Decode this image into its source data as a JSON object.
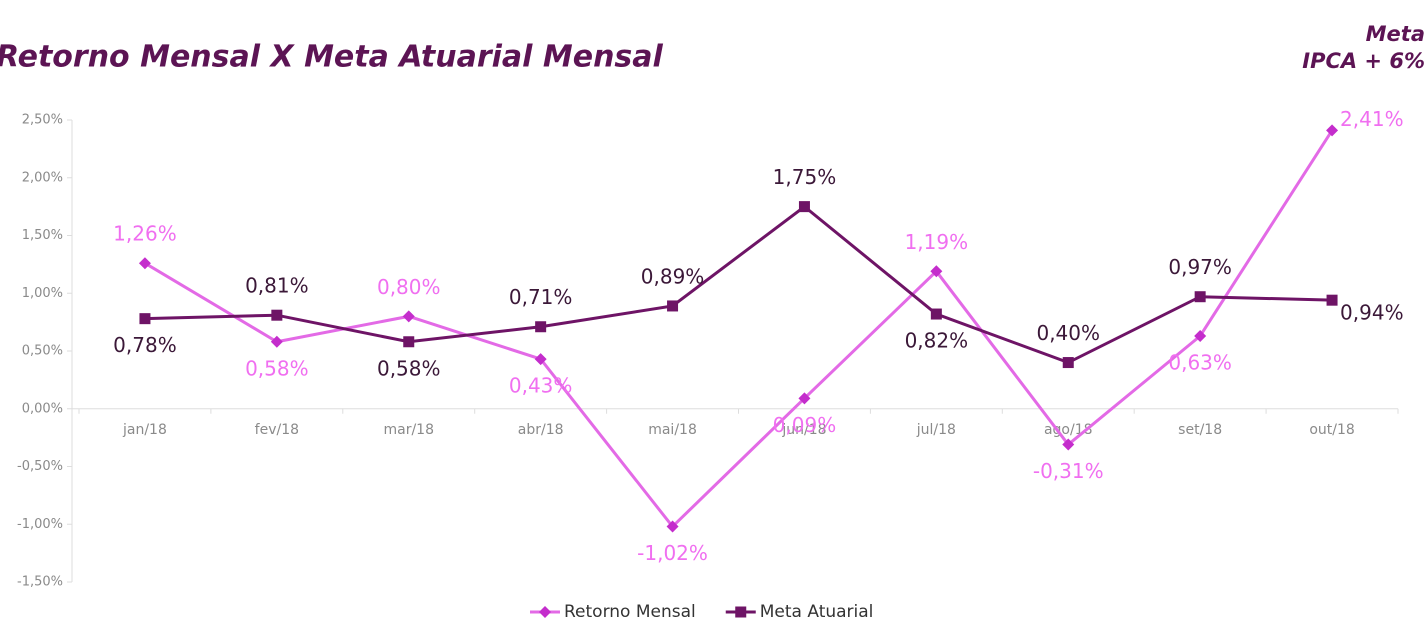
{
  "chart_data": {
    "type": "line",
    "title": "Retorno Mensal X Meta Atuarial Mensal",
    "annotations": [
      "Meta",
      "IPCA + 6%"
    ],
    "categories": [
      "jan/18",
      "fev/18",
      "mar/18",
      "abr/18",
      "mai/18",
      "jun/18",
      "jul/18",
      "ago/18",
      "set/18",
      "out/18"
    ],
    "series": [
      {
        "name": "Retorno Mensal",
        "color": "#e36ae6",
        "marker": "diamond",
        "values": [
          1.26,
          0.58,
          0.8,
          0.43,
          -1.02,
          0.09,
          1.19,
          -0.31,
          0.63,
          2.41
        ],
        "value_labels": [
          "1,26%",
          "0,58%",
          "0,80%",
          "0,43%",
          "-1,02%",
          "0,09%",
          "1,19%",
          "-0,31%",
          "0,63%",
          "2,41%"
        ]
      },
      {
        "name": "Meta Atuarial",
        "color": "#6e1466",
        "marker": "square",
        "values": [
          0.78,
          0.81,
          0.58,
          0.71,
          0.89,
          1.75,
          0.82,
          0.4,
          0.97,
          0.94
        ],
        "value_labels": [
          "0,78%",
          "0,81%",
          "0,58%",
          "0,71%",
          "0,89%",
          "1,75%",
          "0,82%",
          "0,40%",
          "0,97%",
          "0,94%"
        ]
      }
    ],
    "ylim": [
      -1.5,
      2.5
    ],
    "yticks": [
      {
        "value": -1.5,
        "label": "-1,50%"
      },
      {
        "value": -1.0,
        "label": "-1,00%"
      },
      {
        "value": -0.5,
        "label": "-0,50%"
      },
      {
        "value": 0,
        "label": "0,00%"
      },
      {
        "value": 0.5,
        "label": "0,50%"
      },
      {
        "value": 1.0,
        "label": "1,00%"
      },
      {
        "value": 1.5,
        "label": "1,50%"
      },
      {
        "value": 2.0,
        "label": "2,00%"
      },
      {
        "value": 2.5,
        "label": "2,50%"
      }
    ],
    "grid": false,
    "legend": "bottom"
  }
}
